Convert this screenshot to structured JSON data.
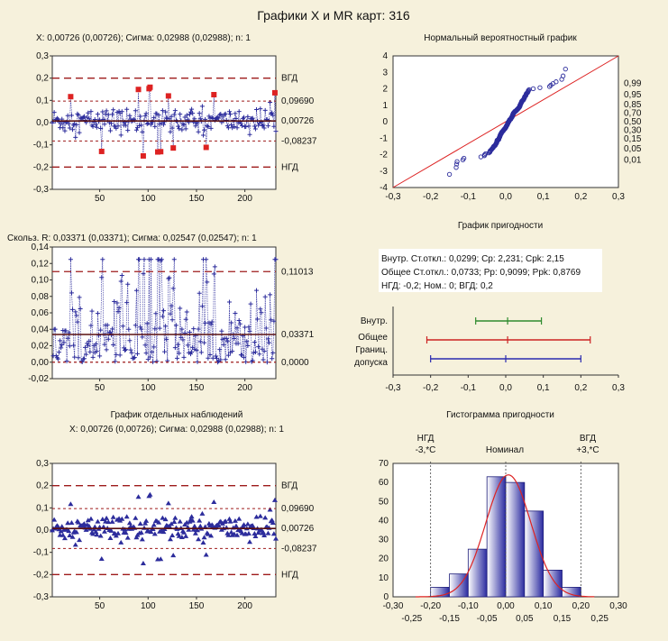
{
  "title": "Графики X и MR карт: 316",
  "colors": {
    "bg": "#f6f1dc",
    "series": "#2c2c9c",
    "highlight": "#dd2222",
    "centerline": "#5a1010",
    "limit": "#9e1b1b",
    "fit": "#dd2222",
    "panel": "#ffffff"
  },
  "chart_data": [
    {
      "type": "line",
      "id": "x-chart",
      "subtitle": "X: 0,00726 (0,00726); Сигма: 0,02988 (0,02988); n: 1",
      "ylim": [
        -0.3,
        0.3
      ],
      "yticks": [
        "0,3",
        "0,2",
        "0,1",
        "0,0",
        "-0,1",
        "-0,2",
        "-0,3"
      ],
      "xlim": [
        1,
        232
      ],
      "xticks": [
        "50",
        "100",
        "150",
        "200"
      ],
      "right_labels": [
        "ВГД",
        "0,09690",
        "0,00726",
        "-0,08237",
        "НГД"
      ],
      "limits": {
        "ucl": 0.2,
        "upper": 0.0969,
        "center": 0.00726,
        "lower": -0.08237,
        "lcl": -0.2
      },
      "seed": 316
    },
    {
      "type": "line",
      "id": "mr-chart",
      "subtitle": "Скольз. R: 0,03371 (0,03371); Сигма: 0,02547 (0,02547); n: 1",
      "ylim": [
        -0.02,
        0.14
      ],
      "yticks": [
        "0,14",
        "0,12",
        "0,10",
        "0,08",
        "0,06",
        "0,04",
        "0,02",
        "0,00",
        "-0,02"
      ],
      "xlim": [
        1,
        232
      ],
      "xticks": [
        "50",
        "100",
        "150",
        "200"
      ],
      "right_labels": [
        "0,11013",
        "0,03371",
        "0,0000"
      ],
      "limits": {
        "ucl": 0.11013,
        "center": 0.03371,
        "lcl": 0.0
      }
    },
    {
      "type": "scatter",
      "id": "indiv-chart",
      "title": "График отдельных наблюдений",
      "subtitle": "X: 0,00726 (0,00726); Сигма: 0,02988 (0,02988); n: 1",
      "ylim": [
        -0.3,
        0.3
      ],
      "yticks": [
        "0,3",
        "0,2",
        "0,1",
        "0,0",
        "-0,1",
        "-0,2",
        "-0,3"
      ],
      "xlim": [
        1,
        232
      ],
      "xticks": [
        "50",
        "100",
        "150",
        "200"
      ],
      "right_labels": [
        "ВГД",
        "0,09690",
        "0,00726",
        "-0,08237",
        "НГД"
      ],
      "limits": {
        "ucl": 0.2,
        "upper": 0.0969,
        "center": 0.00726,
        "lower": -0.08237,
        "lcl": -0.2
      }
    },
    {
      "type": "scatter",
      "id": "normal-prob",
      "title": "Нормальный вероятностный график",
      "xlim": [
        -0.3,
        0.3
      ],
      "ylim": [
        -4,
        4
      ],
      "xticks": [
        "-0,3",
        "-0,2",
        "-0,1",
        "0,0",
        "0,1",
        "0,2",
        "0,3"
      ],
      "yticks": [
        "4",
        "3",
        "2",
        "1",
        "0",
        "-1",
        "-2",
        "-3",
        "-4"
      ],
      "right_ticks": [
        "0,99",
        "0,95",
        "0,85",
        "0,70",
        "0,50",
        "0,30",
        "0,15",
        "0,05",
        "0,01"
      ],
      "right_tick_z": [
        2.326,
        1.645,
        1.036,
        0.524,
        0,
        -0.524,
        -1.036,
        -1.645,
        -2.326
      ],
      "fit_line": {
        "x0": -0.3,
        "y0": -4,
        "x1": 0.3,
        "y1": 4
      }
    },
    {
      "type": "bar",
      "id": "capability",
      "title": "График пригодности",
      "info": [
        "Внутр. Ст.откл.: 0,0299; Cp: 2,231; Cpk: 2,15",
        "Общее Ст.откл.: 0,0733; Pp: 0,9099; Ppk: 0,8769",
        "НГД: -0,2; Ном.: 0; ВГД: 0,2"
      ],
      "categories": [
        "Внутр.",
        "Общее",
        "Границ.",
        "допуска"
      ],
      "intervals": [
        {
          "name": "Внутр.",
          "low": -0.08,
          "mid": 0.005,
          "high": 0.095,
          "color": "#2e8b2e"
        },
        {
          "name": "Общее",
          "low": -0.21,
          "mid": 0.005,
          "high": 0.225,
          "color": "#cc2222"
        },
        {
          "name": "Границ. допуска",
          "low": -0.2,
          "mid": 0.0,
          "high": 0.2,
          "color": "#2a2ab0"
        }
      ],
      "xlim": [
        -0.3,
        0.3
      ],
      "xticks": [
        "-0,3",
        "-0,2",
        "-0,1",
        "0,0",
        "0,1",
        "0,2",
        "0,3"
      ]
    },
    {
      "type": "bar",
      "id": "histogram",
      "title": "Гистограмма пригодности",
      "top_labels": [
        {
          "text": "НГД",
          "sub": "-3,*С"
        },
        {
          "text": "Номинал",
          "sub": ""
        },
        {
          "text": "ВГД",
          "sub": "+3,*С"
        }
      ],
      "bins": [
        -0.225,
        -0.175,
        -0.125,
        -0.075,
        -0.025,
        0.025,
        0.075,
        0.125,
        0.175,
        0.225
      ],
      "values": [
        0,
        5,
        12,
        25,
        63,
        60,
        45,
        14,
        5,
        0
      ],
      "ylim": [
        0,
        70
      ],
      "yticks": [
        "70",
        "60",
        "50",
        "40",
        "30",
        "20",
        "10",
        "0"
      ],
      "xlim": [
        -0.3,
        0.3
      ],
      "xticks_top": [
        "-0,30",
        "-0,20",
        "-0,10",
        "0,00",
        "0,10",
        "0,20",
        "0,30"
      ],
      "xticks_bottom": [
        "-0,25",
        "-0,15",
        "-0,05",
        "0,05",
        "0,15",
        "0,25"
      ]
    }
  ]
}
